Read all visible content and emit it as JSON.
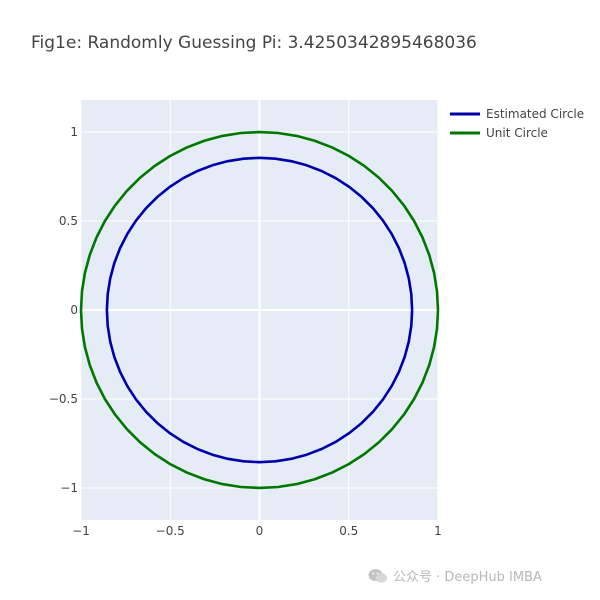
{
  "chart_data": {
    "type": "line",
    "title": "Fig1e: Randomly Guessing Pi: 3.4250342895468036",
    "xlabel": "",
    "ylabel": "",
    "xlim": [
      -1,
      1
    ],
    "ylim": [
      -1.18,
      1.18
    ],
    "x_ticks": [
      -1,
      -0.5,
      0,
      0.5,
      1
    ],
    "x_tick_labels": [
      "−1",
      "−0.5",
      "0",
      "0.5",
      "1"
    ],
    "y_ticks": [
      1,
      0.5,
      0,
      -0.5,
      -1
    ],
    "y_tick_labels": [
      "1",
      "0.5",
      "0",
      "−0.5",
      "−1"
    ],
    "grid": true,
    "legend_position": "top-right",
    "series": [
      {
        "name": "Estimated Circle",
        "shape": "circle",
        "center": [
          0,
          0
        ],
        "radius": 0.855,
        "color": "#0000aa"
      },
      {
        "name": "Unit Circle",
        "shape": "circle",
        "center": [
          0,
          0
        ],
        "radius": 1.0,
        "color": "#007700"
      }
    ]
  },
  "colors": {
    "plot_background": "#e5ecf6",
    "grid": "#ffffff",
    "text": "#444444"
  },
  "watermark": {
    "icon": "wechat-icon",
    "text": "公众号 · DeepHub IMBA"
  }
}
